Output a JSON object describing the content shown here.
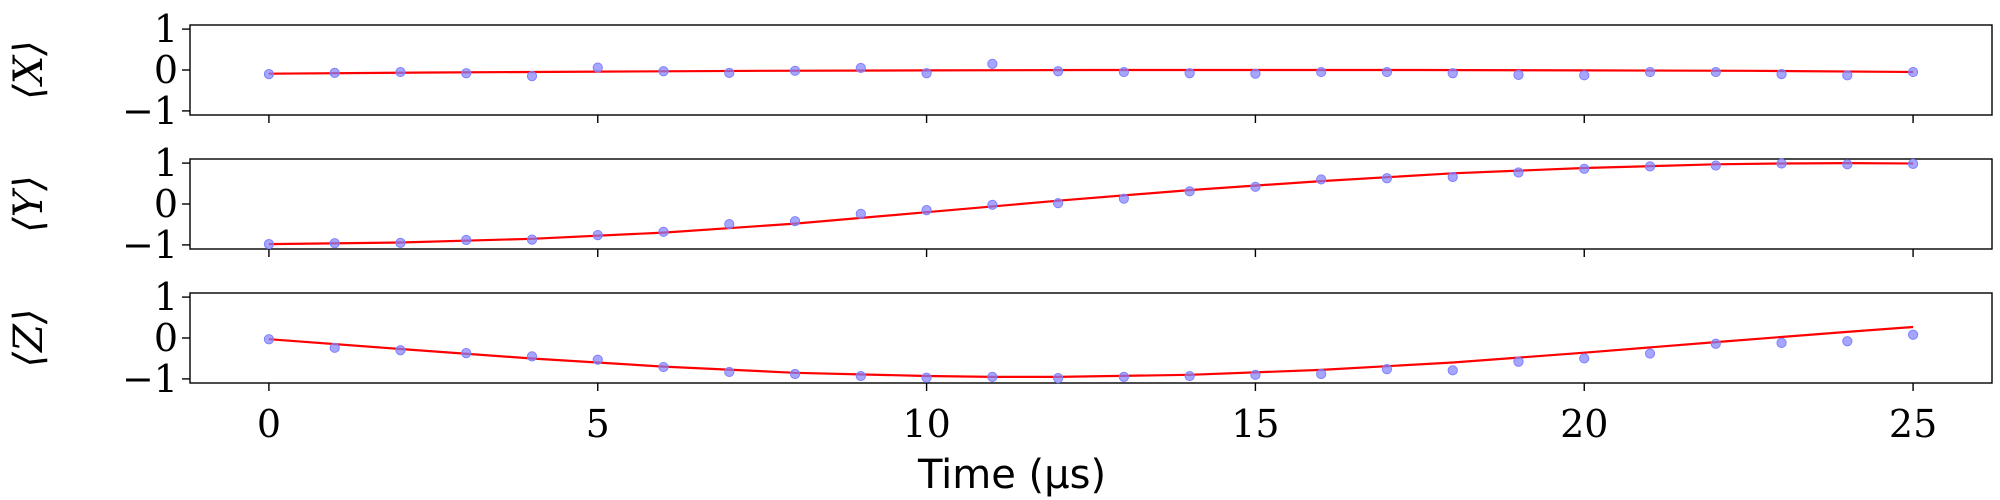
{
  "chart_data": [
    {
      "type": "scatter+line",
      "ylabel": "⟨X⟩",
      "xlim": [
        -1.2,
        26.2
      ],
      "ylim": [
        -1.1,
        1.1
      ],
      "yticks": [
        -1,
        0,
        1
      ],
      "xticks": [
        0,
        5,
        10,
        15,
        20,
        25
      ],
      "marker_color": "#8080ff",
      "line_color": "#ff0000",
      "points": {
        "x": [
          0,
          1,
          2,
          3,
          4,
          5,
          6,
          7,
          8,
          9,
          10,
          11,
          12,
          13,
          14,
          15,
          16,
          17,
          18,
          19,
          20,
          21,
          22,
          23,
          24,
          25
        ],
        "y": [
          -0.1,
          -0.07,
          -0.05,
          -0.08,
          -0.15,
          0.06,
          -0.03,
          -0.07,
          -0.02,
          0.05,
          -0.08,
          0.15,
          -0.03,
          -0.05,
          -0.08,
          -0.09,
          -0.05,
          -0.05,
          -0.08,
          -0.12,
          -0.13,
          -0.05,
          -0.05,
          -0.1,
          -0.13,
          -0.05
        ]
      },
      "fit": {
        "x": [
          0,
          2.5,
          5,
          7.5,
          10,
          12.5,
          15,
          17.5,
          20,
          22.5,
          25
        ],
        "y": [
          -0.09,
          -0.06,
          -0.04,
          -0.02,
          -0.01,
          0.0,
          0.0,
          0.0,
          -0.01,
          -0.02,
          -0.05
        ]
      }
    },
    {
      "type": "scatter+line",
      "ylabel": "⟨Y⟩",
      "xlim": [
        -1.2,
        26.2
      ],
      "ylim": [
        -1.1,
        1.1
      ],
      "yticks": [
        -1,
        0,
        1
      ],
      "xticks": [
        0,
        5,
        10,
        15,
        20,
        25
      ],
      "marker_color": "#8080ff",
      "line_color": "#ff0000",
      "points": {
        "x": [
          0,
          1,
          2,
          3,
          4,
          5,
          6,
          7,
          8,
          9,
          10,
          11,
          12,
          13,
          14,
          15,
          16,
          17,
          18,
          19,
          20,
          21,
          22,
          23,
          24,
          25
        ],
        "y": [
          -0.98,
          -0.96,
          -0.95,
          -0.88,
          -0.87,
          -0.76,
          -0.68,
          -0.49,
          -0.42,
          -0.24,
          -0.15,
          -0.02,
          0.02,
          0.13,
          0.31,
          0.42,
          0.6,
          0.63,
          0.66,
          0.77,
          0.86,
          0.92,
          0.94,
          0.99,
          0.97,
          0.98
        ]
      },
      "fit": {
        "x": [
          0,
          2,
          4,
          6,
          8,
          10,
          12,
          14,
          16,
          18,
          20,
          22,
          23,
          24,
          25
        ],
        "y": [
          -0.98,
          -0.94,
          -0.85,
          -0.7,
          -0.48,
          -0.2,
          0.08,
          0.34,
          0.56,
          0.75,
          0.88,
          0.97,
          0.99,
          1.0,
          0.99
        ]
      }
    },
    {
      "type": "scatter+line",
      "ylabel": "⟨Z⟩",
      "xlim": [
        -1.2,
        26.2
      ],
      "ylim": [
        -1.1,
        1.1
      ],
      "yticks": [
        -1,
        0,
        1
      ],
      "xticks": [
        0,
        5,
        10,
        15,
        20,
        25
      ],
      "xlabel": "Time (μs)",
      "marker_color": "#8080ff",
      "line_color": "#ff0000",
      "points": {
        "x": [
          0,
          1,
          2,
          3,
          4,
          5,
          6,
          7,
          8,
          9,
          10,
          11,
          12,
          13,
          14,
          15,
          16,
          17,
          18,
          19,
          20,
          21,
          22,
          23,
          24,
          25
        ],
        "y": [
          -0.03,
          -0.24,
          -0.3,
          -0.37,
          -0.45,
          -0.53,
          -0.71,
          -0.83,
          -0.88,
          -0.93,
          -0.97,
          -0.95,
          -0.98,
          -0.95,
          -0.93,
          -0.9,
          -0.88,
          -0.76,
          -0.79,
          -0.58,
          -0.5,
          -0.38,
          -0.14,
          -0.12,
          -0.08,
          0.08
        ]
      },
      "fit": {
        "x": [
          0,
          2,
          4,
          6,
          8,
          10,
          11,
          12,
          14,
          16,
          18,
          20,
          22,
          24,
          25
        ],
        "y": [
          -0.03,
          -0.27,
          -0.5,
          -0.7,
          -0.85,
          -0.93,
          -0.95,
          -0.95,
          -0.9,
          -0.78,
          -0.6,
          -0.36,
          -0.1,
          0.15,
          0.27
        ]
      }
    }
  ]
}
